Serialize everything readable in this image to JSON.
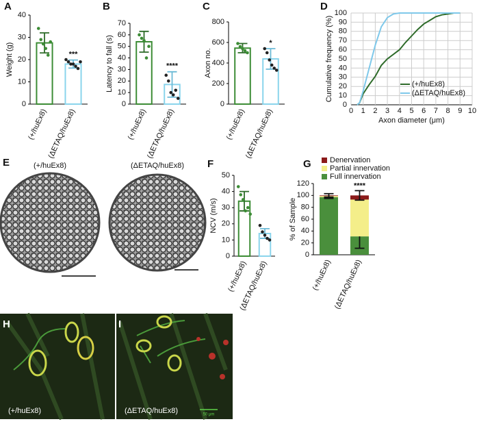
{
  "chart_data": [
    {
      "type": "bar",
      "panel": "A",
      "ylabel": "Weight (g)",
      "categories": [
        "(+/huEx8)",
        "(ΔETAQ/huEx8)"
      ],
      "values": [
        27.5,
        18
      ],
      "errors": [
        4.5,
        1.8
      ],
      "colors": [
        "#3c8c35",
        "#8ad4ec"
      ],
      "points": [
        [
          34,
          29,
          27,
          25,
          22,
          28
        ],
        [
          20,
          19,
          18,
          18,
          17,
          16,
          19
        ]
      ],
      "significance": [
        null,
        "***"
      ],
      "ylim": [
        0,
        40
      ],
      "yticks": [
        0,
        10,
        20,
        30,
        40
      ]
    },
    {
      "type": "bar",
      "panel": "B",
      "ylabel": "Latency to fall (s)",
      "categories": [
        "(+/huEx8)",
        "(ΔETAQ/huEx8)"
      ],
      "values": [
        54,
        17
      ],
      "errors": [
        9,
        11
      ],
      "colors": [
        "#3c8c35",
        "#8ad4ec"
      ],
      "points": [
        [
          60,
          57,
          55,
          40,
          50
        ],
        [
          25,
          20,
          10,
          8,
          12,
          5
        ]
      ],
      "significance": [
        null,
        "****"
      ],
      "ylim": [
        0,
        70
      ],
      "yticks": [
        0,
        10,
        20,
        30,
        40,
        50,
        60,
        70
      ]
    },
    {
      "type": "bar",
      "panel": "C",
      "ylabel": "Axon no.",
      "categories": [
        "(+/huEx8)",
        "(ΔETAQ/huEx8)"
      ],
      "values": [
        545,
        440
      ],
      "errors": [
        45,
        100
      ],
      "colors": [
        "#3c8c35",
        "#8ad4ec"
      ],
      "points": [
        [
          590,
          560,
          540,
          520,
          500
        ],
        [
          540,
          500,
          430,
          380,
          350,
          330
        ]
      ],
      "significance": [
        null,
        "*"
      ],
      "ylim": [
        0,
        800
      ],
      "yticks": [
        0,
        200,
        400,
        600,
        800
      ]
    },
    {
      "type": "line",
      "panel": "D",
      "xlabel": "Axon diameter (μm)",
      "ylabel": "Cumulative frequency (%)",
      "x": [
        0.5,
        0.7,
        1,
        1.5,
        2,
        2.5,
        3,
        3.5,
        4,
        4.5,
        5,
        5.5,
        6,
        6.5,
        7,
        7.5,
        8,
        8.5,
        9
      ],
      "series": [
        {
          "name": "(+/huEx8)",
          "color": "#2e6b2a",
          "values": [
            0,
            2,
            12,
            22,
            31,
            43,
            50,
            55,
            60,
            68,
            75,
            82,
            88,
            92,
            96,
            98,
            99,
            100,
            100
          ]
        },
        {
          "name": "(ΔETAQ/huEx8)",
          "color": "#7ec8ea",
          "values": [
            0,
            2,
            15,
            40,
            65,
            85,
            95,
            99,
            100,
            100,
            100,
            100,
            100,
            100,
            100,
            100,
            100,
            100,
            100
          ]
        }
      ],
      "xlim": [
        0,
        10
      ],
      "xticks": [
        0,
        1,
        2,
        3,
        4,
        5,
        6,
        7,
        8,
        9,
        10
      ],
      "ylim": [
        0,
        100
      ],
      "yticks": [
        0,
        10,
        20,
        30,
        40,
        50,
        60,
        70,
        80,
        90,
        100
      ],
      "grid": true
    },
    {
      "type": "bar",
      "panel": "F",
      "ylabel": "NCV (m/s)",
      "categories": [
        "(+/huEx8)",
        "(ΔETAQ/huEx8)"
      ],
      "values": [
        34,
        14
      ],
      "errors": [
        6,
        3
      ],
      "colors": [
        "#3c8c35",
        "#8ad4ec"
      ],
      "points": [
        [
          43,
          38,
          35,
          28,
          30,
          26
        ],
        [
          19,
          15,
          13,
          11,
          10
        ]
      ],
      "significance": [
        null,
        null
      ],
      "ylim": [
        0,
        50
      ],
      "yticks": [
        0,
        10,
        20,
        30,
        40,
        50
      ]
    },
    {
      "type": "stacked-bar",
      "panel": "G",
      "ylabel": "% of Sample",
      "categories": [
        "(+/huEx8)",
        "(ΔETAQ/huEx8)"
      ],
      "series": [
        {
          "name": "Full innervation",
          "color": "#4a8f3c",
          "values": [
            97,
            31
          ],
          "errors": [
            2,
            20
          ]
        },
        {
          "name": "Partial innervation",
          "color": "#f4ee8a",
          "values": [
            2,
            62
          ]
        },
        {
          "name": "Denervation",
          "color": "#8b1a1a",
          "values": [
            1,
            7
          ],
          "errors": [
            3,
            8
          ]
        }
      ],
      "significance": [
        null,
        "****"
      ],
      "ylim": [
        0,
        120
      ],
      "yticks": [
        0,
        20,
        40,
        60,
        80,
        100,
        120
      ]
    }
  ],
  "images": [
    {
      "panel": "E",
      "captions": [
        "(+/huEx8)",
        "(ΔETAQ/huEx8)"
      ]
    },
    {
      "panel": "H",
      "caption": "(+/huEx8)"
    },
    {
      "panel": "I",
      "caption": "(ΔETAQ/huEx8)",
      "scale_label": "50 μm"
    }
  ]
}
